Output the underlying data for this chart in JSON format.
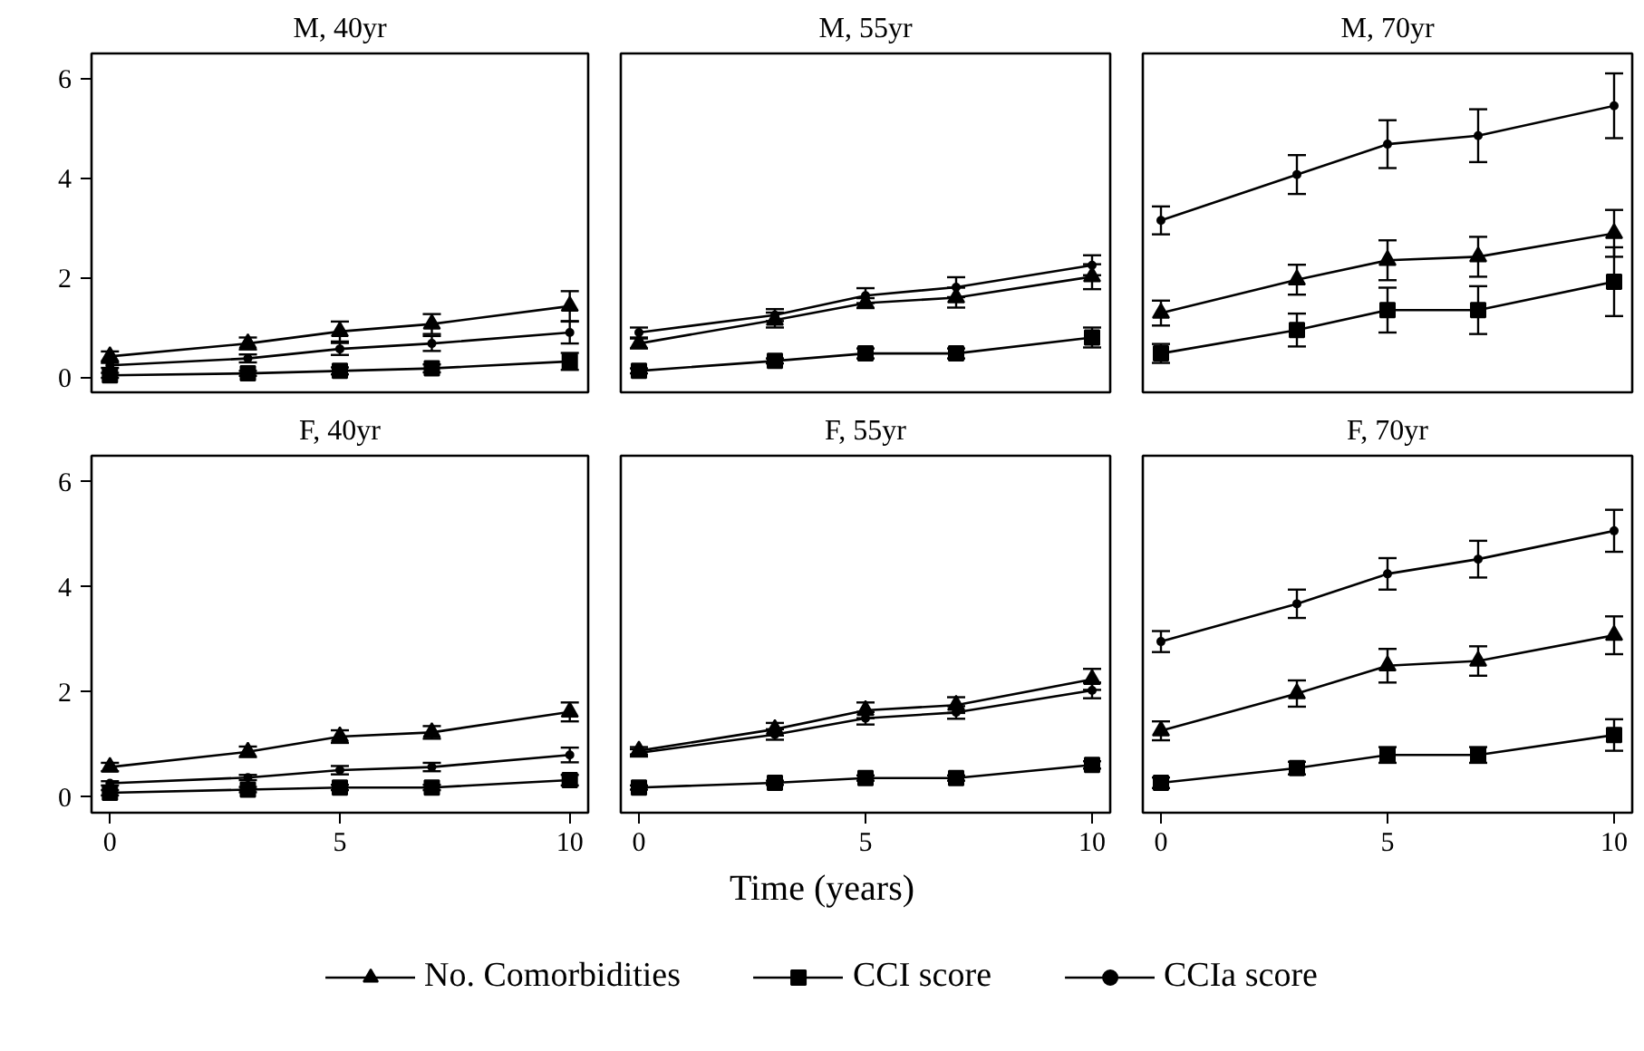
{
  "chart_data": [
    {
      "type": "line",
      "title": "M, 40yr",
      "x": [
        0,
        3,
        5,
        7,
        10
      ],
      "xlim": [
        -0.4,
        10.4
      ],
      "ylim": [
        -0.3,
        6.5
      ],
      "yticks": [
        0,
        2,
        4,
        6
      ],
      "tick_labels": "y",
      "series": [
        {
          "color": "#000000",
          "marker": "triangle",
          "values": [
            0.42,
            0.68,
            0.92,
            1.07,
            1.43
          ],
          "errors": [
            0.1,
            0.12,
            0.2,
            0.2,
            0.3
          ]
        },
        {
          "color": "#000000",
          "marker": "square",
          "values": [
            0.04,
            0.08,
            0.13,
            0.18,
            0.32
          ],
          "errors": [
            0.05,
            0.05,
            0.07,
            0.08,
            0.17
          ]
        },
        {
          "color": "#000000",
          "marker": "circle",
          "values": [
            0.24,
            0.38,
            0.57,
            0.68,
            0.9
          ],
          "errors": [
            0.05,
            0.08,
            0.12,
            0.15,
            0.22
          ]
        }
      ]
    },
    {
      "type": "line",
      "title": "M, 55yr",
      "x": [
        0,
        3,
        5,
        7,
        10
      ],
      "xlim": [
        -0.4,
        10.4
      ],
      "ylim": [
        -0.3,
        6.5
      ],
      "tick_labels": false,
      "series": [
        {
          "color": "#000000",
          "marker": "triangle",
          "values": [
            0.68,
            1.15,
            1.49,
            1.6,
            2.02
          ],
          "errors": [
            0.1,
            0.15,
            0.1,
            0.2,
            0.25
          ]
        },
        {
          "color": "#000000",
          "marker": "square",
          "values": [
            0.13,
            0.33,
            0.48,
            0.48,
            0.8
          ],
          "errors": [
            0.05,
            0.05,
            0.1,
            0.1,
            0.2
          ]
        },
        {
          "color": "#000000",
          "marker": "circle",
          "values": [
            0.9,
            1.25,
            1.64,
            1.81,
            2.25
          ],
          "errors": [
            0.1,
            0.12,
            0.15,
            0.2,
            0.2
          ]
        }
      ]
    },
    {
      "type": "line",
      "title": "M, 70yr",
      "x": [
        0,
        3,
        5,
        7,
        10
      ],
      "xlim": [
        -0.4,
        10.4
      ],
      "ylim": [
        -0.3,
        6.5
      ],
      "tick_labels": false,
      "series": [
        {
          "color": "#000000",
          "marker": "triangle",
          "values": [
            1.29,
            1.96,
            2.35,
            2.42,
            2.89
          ],
          "errors": [
            0.25,
            0.3,
            0.4,
            0.4,
            0.47
          ]
        },
        {
          "color": "#000000",
          "marker": "square",
          "values": [
            0.48,
            0.95,
            1.35,
            1.35,
            1.92
          ],
          "errors": [
            0.19,
            0.33,
            0.45,
            0.48,
            0.69
          ]
        },
        {
          "color": "#000000",
          "marker": "circle",
          "values": [
            3.15,
            4.07,
            4.68,
            4.85,
            5.45
          ],
          "errors": [
            0.28,
            0.39,
            0.48,
            0.53,
            0.65
          ]
        }
      ]
    },
    {
      "type": "line",
      "title": "F, 40yr",
      "x": [
        0,
        3,
        5,
        7,
        10
      ],
      "xlim": [
        -0.4,
        10.4
      ],
      "ylim": [
        -0.3,
        6.5
      ],
      "xticks": [
        0,
        5,
        10
      ],
      "yticks": [
        0,
        2,
        4,
        6
      ],
      "series": [
        {
          "color": "#000000",
          "marker": "triangle",
          "values": [
            0.57,
            0.86,
            1.15,
            1.23,
            1.62
          ],
          "errors": [
            0.08,
            0.1,
            0.12,
            0.12,
            0.18
          ]
        },
        {
          "color": "#000000",
          "marker": "square",
          "values": [
            0.08,
            0.14,
            0.18,
            0.18,
            0.32
          ],
          "errors": [
            0.05,
            0.05,
            0.05,
            0.05,
            0.1
          ]
        },
        {
          "color": "#000000",
          "marker": "circle",
          "values": [
            0.26,
            0.37,
            0.51,
            0.57,
            0.8
          ],
          "errors": [
            0.04,
            0.05,
            0.08,
            0.08,
            0.14
          ]
        }
      ]
    },
    {
      "type": "line",
      "title": "F, 55yr",
      "x": [
        0,
        3,
        5,
        7,
        10
      ],
      "xlim": [
        -0.4,
        10.4
      ],
      "ylim": [
        -0.3,
        6.5
      ],
      "xticks": [
        0,
        5,
        10
      ],
      "tick_labels": "x",
      "xlabel": "Time (years)",
      "legend": "bottom",
      "series": [
        {
          "name": "No. Comorbidities",
          "color": "#000000",
          "marker": "triangle",
          "values": [
            0.88,
            1.29,
            1.65,
            1.75,
            2.24
          ],
          "errors": [
            0.07,
            0.12,
            0.15,
            0.15,
            0.2
          ]
        },
        {
          "name": "CCI score",
          "color": "#000000",
          "marker": "square",
          "values": [
            0.18,
            0.27,
            0.36,
            0.36,
            0.61
          ],
          "errors": [
            0.04,
            0.04,
            0.05,
            0.05,
            0.07
          ]
        },
        {
          "name": "CCIa score",
          "color": "#000000",
          "marker": "circle",
          "values": [
            0.84,
            1.19,
            1.5,
            1.61,
            2.03
          ],
          "errors": [
            0.07,
            0.1,
            0.12,
            0.12,
            0.15
          ]
        }
      ]
    },
    {
      "type": "line",
      "title": "F, 70yr",
      "x": [
        0,
        3,
        5,
        7,
        10
      ],
      "xlim": [
        -0.4,
        10.4
      ],
      "ylim": [
        -0.3,
        6.5
      ],
      "xticks": [
        0,
        5,
        10
      ],
      "tick_labels": "x",
      "series": [
        {
          "color": "#000000",
          "marker": "triangle",
          "values": [
            1.26,
            1.97,
            2.5,
            2.59,
            3.08
          ],
          "errors": [
            0.18,
            0.25,
            0.32,
            0.28,
            0.36
          ]
        },
        {
          "color": "#000000",
          "marker": "square",
          "values": [
            0.27,
            0.55,
            0.8,
            0.8,
            1.18
          ],
          "errors": [
            0.1,
            0.12,
            0.15,
            0.15,
            0.3
          ]
        },
        {
          "color": "#000000",
          "marker": "circle",
          "values": [
            2.96,
            3.68,
            4.25,
            4.53,
            5.07
          ],
          "errors": [
            0.2,
            0.27,
            0.3,
            0.35,
            0.4
          ]
        }
      ]
    }
  ]
}
